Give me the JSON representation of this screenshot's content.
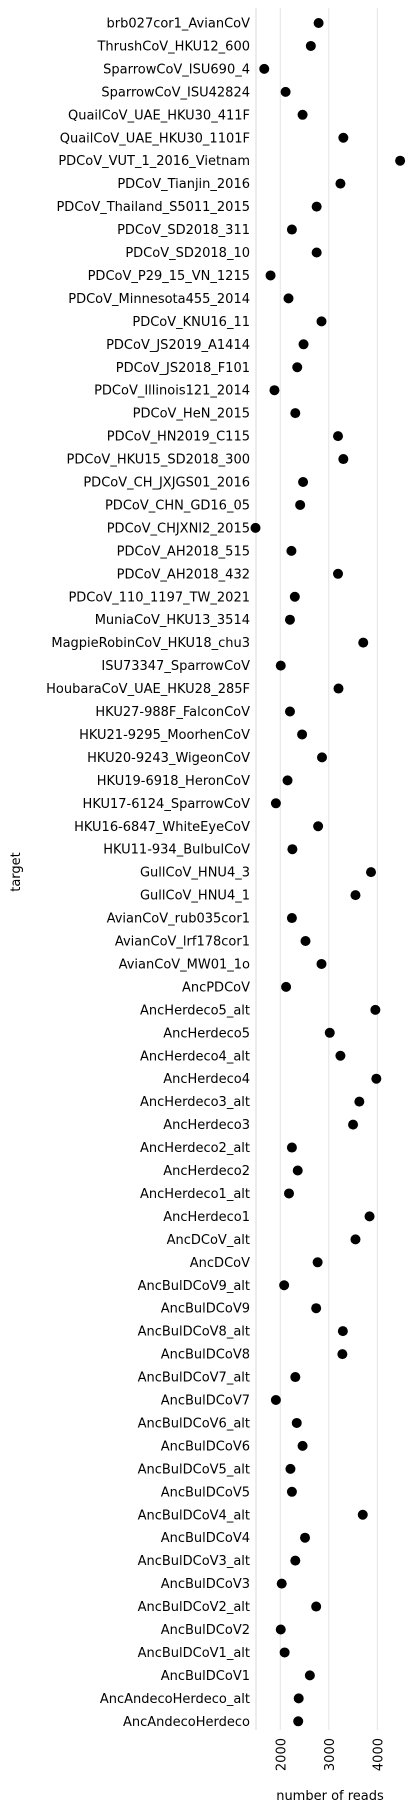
{
  "chart_data": {
    "type": "scatter",
    "orientation": "horizontal",
    "xlabel": "number of reads",
    "ylabel": "target",
    "xticks": [
      2000,
      3000,
      4000
    ],
    "xlim": [
      1500,
      4550
    ],
    "grid": "vertical",
    "point_color": "#000000",
    "categories": [
      "brb027cor1_AvianCoV",
      "ThrushCoV_HKU12_600",
      "SparrowCoV_ISU690_4",
      "SparrowCoV_ISU42824",
      "QuailCoV_UAE_HKU30_411F",
      "QuailCoV_UAE_HKU30_1101F",
      "PDCoV_VUT_1_2016_Vietnam",
      "PDCoV_Tianjin_2016",
      "PDCoV_Thailand_S5011_2015",
      "PDCoV_SD2018_311",
      "PDCoV_SD2018_10",
      "PDCoV_P29_15_VN_1215",
      "PDCoV_Minnesota455_2014",
      "PDCoV_KNU16_11",
      "PDCoV_JS2019_A1414",
      "PDCoV_JS2018_F101",
      "PDCoV_Illinois121_2014",
      "PDCoV_HeN_2015",
      "PDCoV_HN2019_C115",
      "PDCoV_HKU15_SD2018_300",
      "PDCoV_CH_JXJGS01_2016",
      "PDCoV_CHN_GD16_05",
      "PDCoV_CHJXNI2_2015",
      "PDCoV_AH2018_515",
      "PDCoV_AH2018_432",
      "PDCoV_110_1197_TW_2021",
      "MuniaCoV_HKU13_3514",
      "MagpieRobinCoV_HKU18_chu3",
      "ISU73347_SparrowCoV",
      "HoubaraCoV_UAE_HKU28_285F",
      "HKU27-988F_FalconCoV",
      "HKU21-9295_MoorhenCoV",
      "HKU20-9243_WigeonCoV",
      "HKU19-6918_HeronCoV",
      "HKU17-6124_SparrowCoV",
      "HKU16-6847_WhiteEyeCoV",
      "HKU11-934_BulbulCoV",
      "GullCoV_HNU4_3",
      "GullCoV_HNU4_1",
      "AvianCoV_rub035cor1",
      "AvianCoV_lrf178cor1",
      "AvianCoV_MW01_1o",
      "AncPDCoV",
      "AncHerdeco5_alt",
      "AncHerdeco5",
      "AncHerdeco4_alt",
      "AncHerdeco4",
      "AncHerdeco3_alt",
      "AncHerdeco3",
      "AncHerdeco2_alt",
      "AncHerdeco2",
      "AncHerdeco1_alt",
      "AncHerdeco1",
      "AncDCoV_alt",
      "AncDCoV",
      "AncBulDCoV9_alt",
      "AncBulDCoV9",
      "AncBulDCoV8_alt",
      "AncBulDCoV8",
      "AncBulDCoV7_alt",
      "AncBulDCoV7",
      "AncBulDCoV6_alt",
      "AncBulDCoV6",
      "AncBulDCoV5_alt",
      "AncBulDCoV5",
      "AncBulDCoV4_alt",
      "AncBulDCoV4",
      "AncBulDCoV3_alt",
      "AncBulDCoV3",
      "AncBulDCoV2_alt",
      "AncBulDCoV2",
      "AncBulDCoV1_alt",
      "AncBulDCoV1",
      "AncAndecoHerdeco_alt",
      "AncAndecoHerdeco"
    ],
    "values": [
      2790,
      2630,
      1670,
      2110,
      2460,
      3300,
      4470,
      3240,
      2750,
      2240,
      2750,
      1800,
      2170,
      2850,
      2480,
      2350,
      1880,
      2310,
      3190,
      3300,
      2470,
      2410,
      1490,
      2230,
      3190,
      2300,
      2200,
      3710,
      2010,
      3200,
      2200,
      2450,
      2860,
      2150,
      1910,
      2780,
      2250,
      3870,
      3550,
      2240,
      2520,
      2850,
      2120,
      3960,
      3020,
      3240,
      3980,
      3630,
      3500,
      2240,
      2360,
      2180,
      3840,
      3550,
      2770,
      2080,
      2740,
      3290,
      3280,
      2310,
      1910,
      2340,
      2460,
      2210,
      2240,
      3700,
      2510,
      2310,
      2030,
      2740,
      2010,
      2090,
      2610,
      2380,
      2370
    ]
  }
}
